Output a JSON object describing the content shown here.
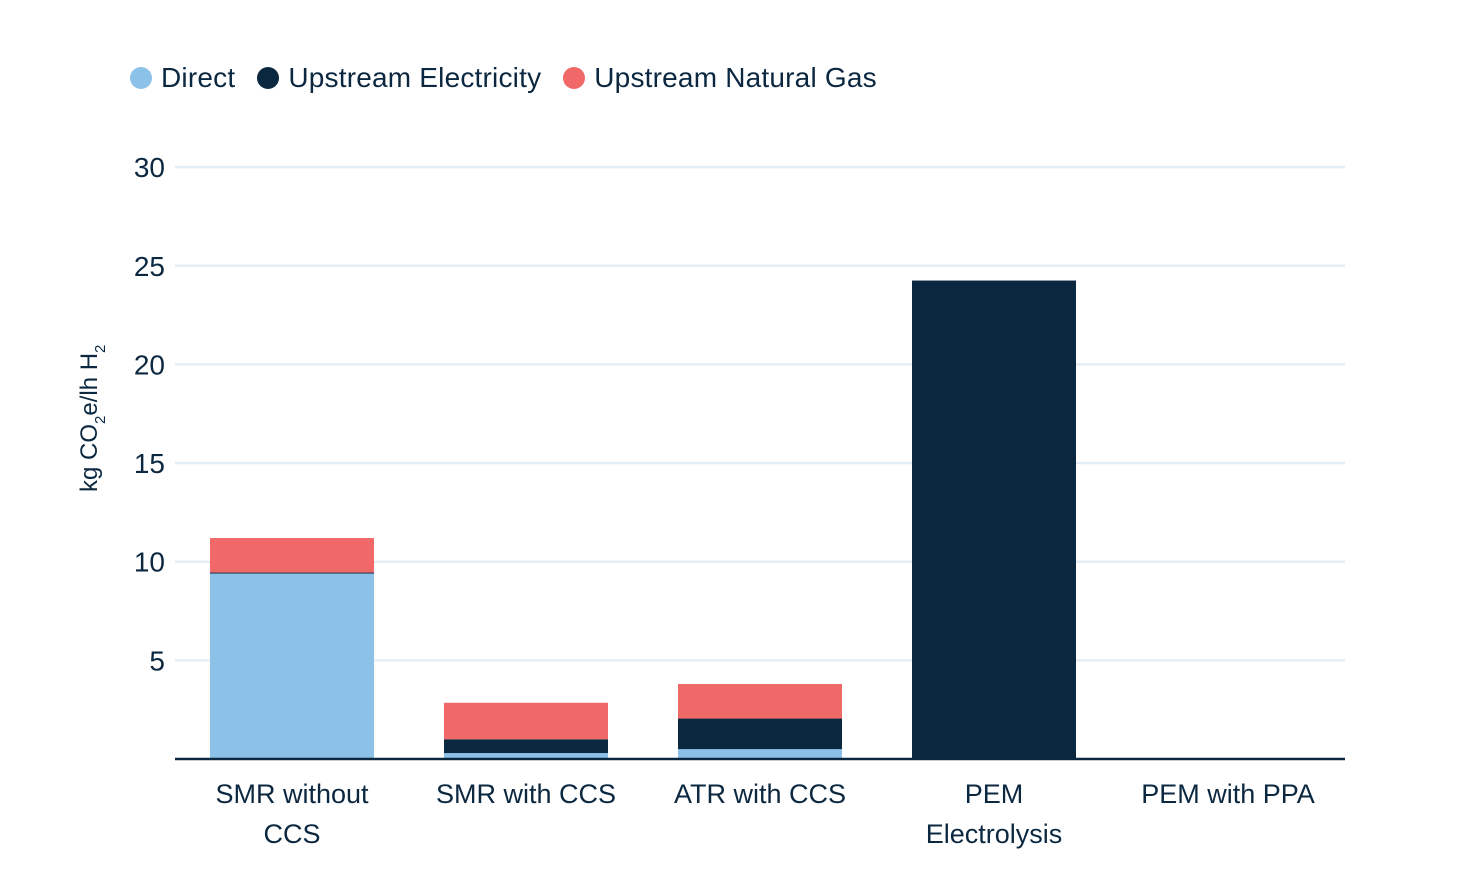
{
  "chart_data": {
    "type": "bar",
    "stacked": true,
    "categories": [
      [
        "SMR without",
        "CCS"
      ],
      [
        "SMR with CCS"
      ],
      [
        "ATR with CCS"
      ],
      [
        "PEM",
        "Electrolysis"
      ],
      [
        "PEM with PPA"
      ]
    ],
    "series": [
      {
        "name": "Direct",
        "color": "#8cc1e8",
        "values": [
          9.4,
          0.3,
          0.5,
          0,
          0
        ]
      },
      {
        "name": "Upstream Electricity",
        "color": "#0a2840",
        "values": [
          0.05,
          0.7,
          1.55,
          24.25,
          0
        ]
      },
      {
        "name": "Upstream Natural Gas",
        "color": "#f06868",
        "values": [
          1.75,
          1.85,
          1.75,
          0,
          0
        ]
      }
    ],
    "ylabel": {
      "main": "kg CO",
      "sub1": "2",
      "mid": "e/lh H",
      "sub2": "2"
    },
    "ylim": [
      0,
      30
    ],
    "yticks": [
      "5",
      "10",
      "15",
      "20",
      "25",
      "30"
    ],
    "grid": true,
    "legend_position": "top-left"
  }
}
